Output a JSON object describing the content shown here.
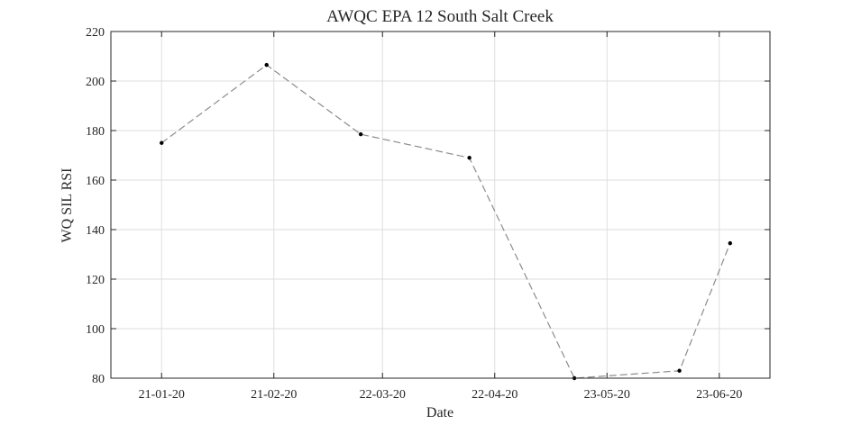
{
  "chart_data": {
    "type": "line",
    "title": "AWQC EPA 12 South Salt Creek",
    "xlabel": "Date",
    "ylabel": "WQ SIL RSI",
    "x_ticks": [
      "21-01-20",
      "21-02-20",
      "22-03-20",
      "22-04-20",
      "23-05-20",
      "23-06-20"
    ],
    "x_tick_dates": [
      "2020-01-21",
      "2020-02-21",
      "2020-03-22",
      "2020-04-22",
      "2020-05-23",
      "2020-06-23"
    ],
    "xlim": [
      "2020-01-07",
      "2020-07-07"
    ],
    "ylim": [
      80,
      220
    ],
    "y_ticks": [
      80,
      100,
      120,
      140,
      160,
      180,
      200,
      220
    ],
    "grid": true,
    "series": [
      {
        "x": [
          "2020-01-21",
          "2020-02-19",
          "2020-03-16",
          "2020-04-15",
          "2020-05-14",
          "2020-06-12",
          "2020-06-26"
        ],
        "values": [
          175,
          206.5,
          178.5,
          169,
          80,
          83,
          134.5
        ],
        "color": "#8c8c8c",
        "line_style": "dashed",
        "marker_color": "#000000"
      }
    ]
  }
}
